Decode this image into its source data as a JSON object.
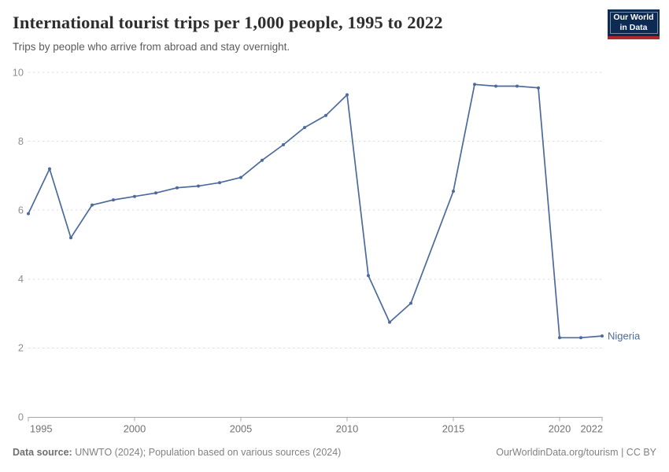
{
  "header": {
    "title": "International tourist trips per 1,000 people, 1995 to 2022",
    "subtitle": "Trips by people who arrive from abroad and stay overnight.",
    "logo": {
      "line1": "Our World",
      "line2": "in Data"
    }
  },
  "chart_data": {
    "type": "line",
    "title": "International tourist trips per 1,000 people, 1995 to 2022",
    "subtitle": "Trips by people who arrive from abroad and stay overnight.",
    "x": [
      1995,
      1996,
      1997,
      1998,
      1999,
      2000,
      2001,
      2002,
      2003,
      2004,
      2005,
      2006,
      2007,
      2008,
      2009,
      2010,
      2011,
      2012,
      2013,
      2014,
      2015,
      2016,
      2017,
      2018,
      2019,
      2020,
      2021,
      2022
    ],
    "series": [
      {
        "name": "Nigeria",
        "color": "#4c6a9c",
        "values": [
          5.9,
          7.2,
          5.2,
          6.15,
          6.3,
          6.4,
          6.5,
          6.65,
          6.7,
          6.8,
          6.95,
          7.45,
          7.9,
          8.4,
          8.75,
          9.35,
          4.1,
          2.75,
          3.3,
          null,
          6.55,
          9.65,
          9.6,
          9.6,
          9.55,
          2.3,
          2.3,
          2.35
        ]
      }
    ],
    "xlabel": "",
    "ylabel": "",
    "xlim": [
      1995,
      2022
    ],
    "ylim": [
      0,
      10
    ],
    "xticks": [
      1995,
      2000,
      2005,
      2010,
      2015,
      2020,
      2022
    ],
    "yticks": [
      0,
      2,
      4,
      6,
      8,
      10
    ],
    "grid": "horizontal-dashed",
    "legend_position": "end-of-line-label"
  },
  "footer": {
    "source_label": "Data source:",
    "source_text": " UNWTO (2024); Population based on various sources (2024)",
    "link_text": "OurWorldinData.org/tourism | CC BY"
  },
  "colors": {
    "series_blue": "#4c6a9c",
    "grid_line": "#dedede",
    "axis_line": "#a8a8a8",
    "y_tick_label": "#8f8f8f",
    "x_tick_label": "#707070",
    "logo_bg": "#0d2a52",
    "logo_bar": "#b0272c"
  }
}
